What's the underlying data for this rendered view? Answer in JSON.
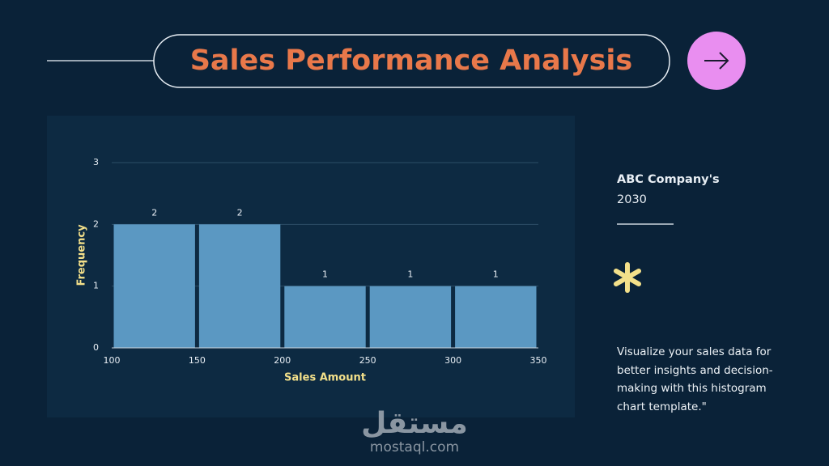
{
  "header": {
    "title": "Sales Performance Analysis"
  },
  "chart_data": {
    "type": "histogram",
    "bins": [
      100,
      150,
      200,
      250,
      300,
      350
    ],
    "values": [
      2,
      2,
      1,
      1,
      1
    ],
    "color": "#5b98c2",
    "xlabel": "Sales Amount",
    "ylabel": "Frequency",
    "xlim": [
      100,
      350
    ],
    "ylim": [
      0,
      3
    ],
    "xticks": [
      100,
      150,
      200,
      250,
      300,
      350
    ],
    "yticks": [
      0,
      1,
      2,
      3
    ],
    "grid": true
  },
  "sidebar": {
    "company": "ABC Company's",
    "year": "2030",
    "description": "Visualize your sales data for better insights and decision-making with this histogram chart template.\""
  },
  "watermark": {
    "arabic": "مستقل",
    "site": "mostaql.com"
  }
}
